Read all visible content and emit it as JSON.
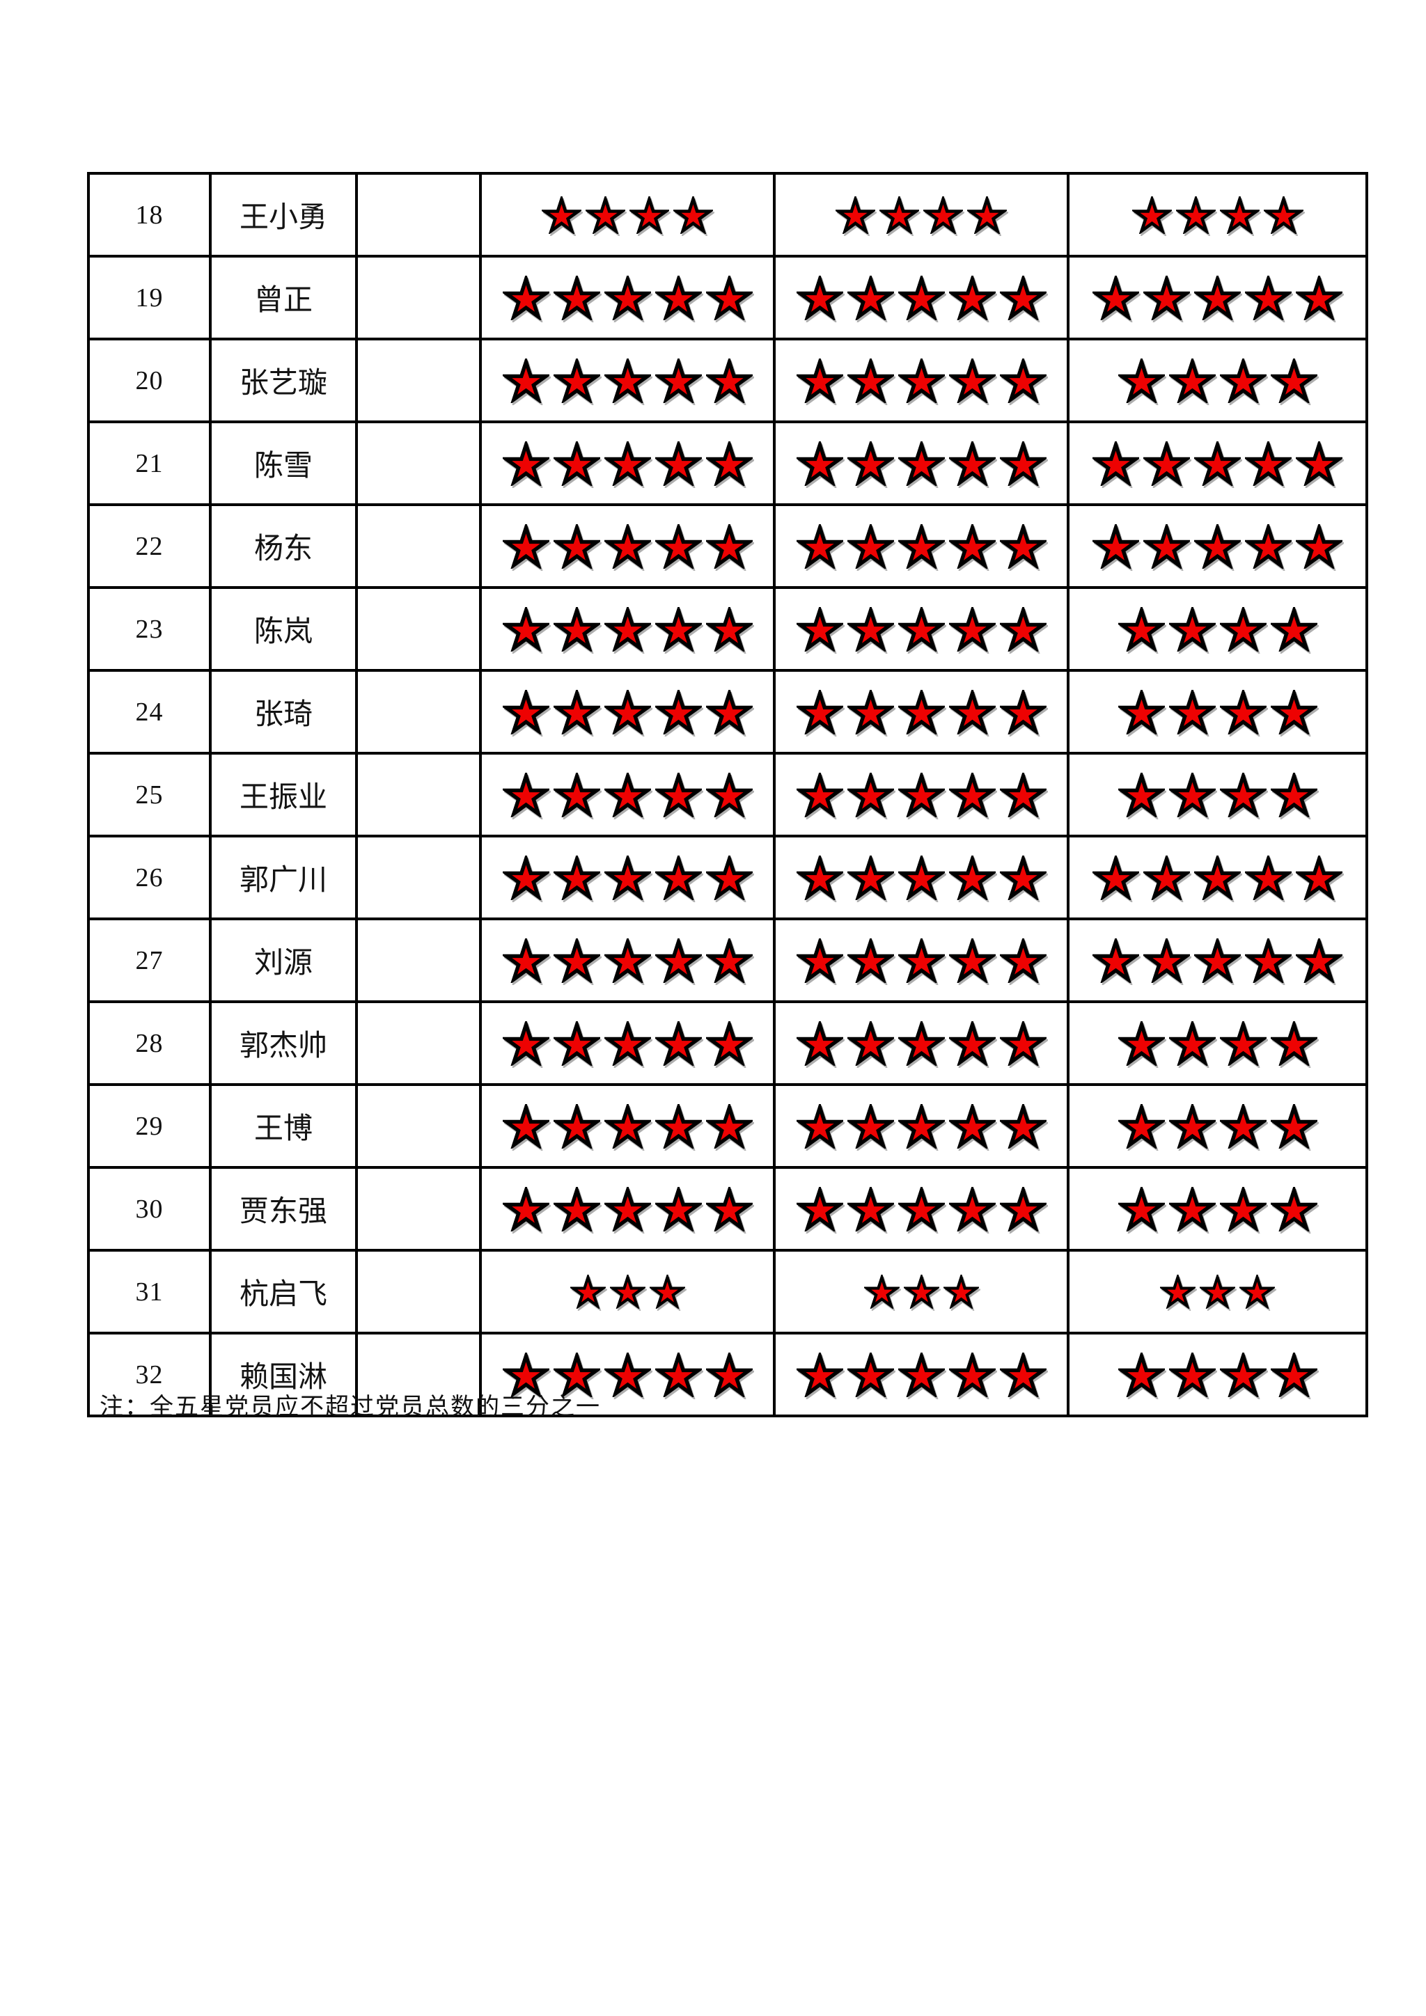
{
  "page": {
    "background": "#ffffff",
    "note": "注：全五星党员应不超过党员总数的三分之一"
  },
  "table": {
    "border_color": "#000000",
    "star_fill_color": "#ee0202",
    "star_outline_color": "#000000",
    "star_icon": "star-icon",
    "columns": [
      "row-number",
      "member-name",
      "blank",
      "stars-1",
      "stars-2",
      "stars-3"
    ],
    "rows": [
      {
        "num": "18",
        "name": "王小勇",
        "blank": "",
        "stars": [
          4,
          4,
          4
        ],
        "star_scale": "medium"
      },
      {
        "num": "19",
        "name": "曾正",
        "blank": "",
        "stars": [
          5,
          5,
          5
        ],
        "star_scale": "normal"
      },
      {
        "num": "20",
        "name": "张艺璇",
        "blank": "",
        "stars": [
          5,
          5,
          4
        ],
        "star_scale": "normal"
      },
      {
        "num": "21",
        "name": "陈雪",
        "blank": "",
        "stars": [
          5,
          5,
          5
        ],
        "star_scale": "normal"
      },
      {
        "num": "22",
        "name": "杨东",
        "blank": "",
        "stars": [
          5,
          5,
          5
        ],
        "star_scale": "normal"
      },
      {
        "num": "23",
        "name": "陈岚",
        "blank": "",
        "stars": [
          5,
          5,
          4
        ],
        "star_scale": "normal"
      },
      {
        "num": "24",
        "name": "张琦",
        "blank": "",
        "stars": [
          5,
          5,
          4
        ],
        "star_scale": "normal"
      },
      {
        "num": "25",
        "name": "王振业",
        "blank": "",
        "stars": [
          5,
          5,
          4
        ],
        "star_scale": "normal"
      },
      {
        "num": "26",
        "name": "郭广川",
        "blank": "",
        "stars": [
          5,
          5,
          5
        ],
        "star_scale": "normal"
      },
      {
        "num": "27",
        "name": "刘源",
        "blank": "",
        "stars": [
          5,
          5,
          5
        ],
        "star_scale": "normal"
      },
      {
        "num": "28",
        "name": "郭杰帅",
        "blank": "",
        "stars": [
          5,
          5,
          4
        ],
        "star_scale": "normal"
      },
      {
        "num": "29",
        "name": "王博",
        "blank": "",
        "stars": [
          5,
          5,
          4
        ],
        "star_scale": "normal"
      },
      {
        "num": "30",
        "name": "贾东强",
        "blank": "",
        "stars": [
          5,
          5,
          4
        ],
        "star_scale": "normal"
      },
      {
        "num": "31",
        "name": "杭启飞",
        "blank": "",
        "stars": [
          3,
          3,
          3
        ],
        "star_scale": "small"
      },
      {
        "num": "32",
        "name": "赖国淋",
        "blank": "",
        "stars": [
          5,
          5,
          4
        ],
        "star_scale": "normal"
      }
    ]
  }
}
